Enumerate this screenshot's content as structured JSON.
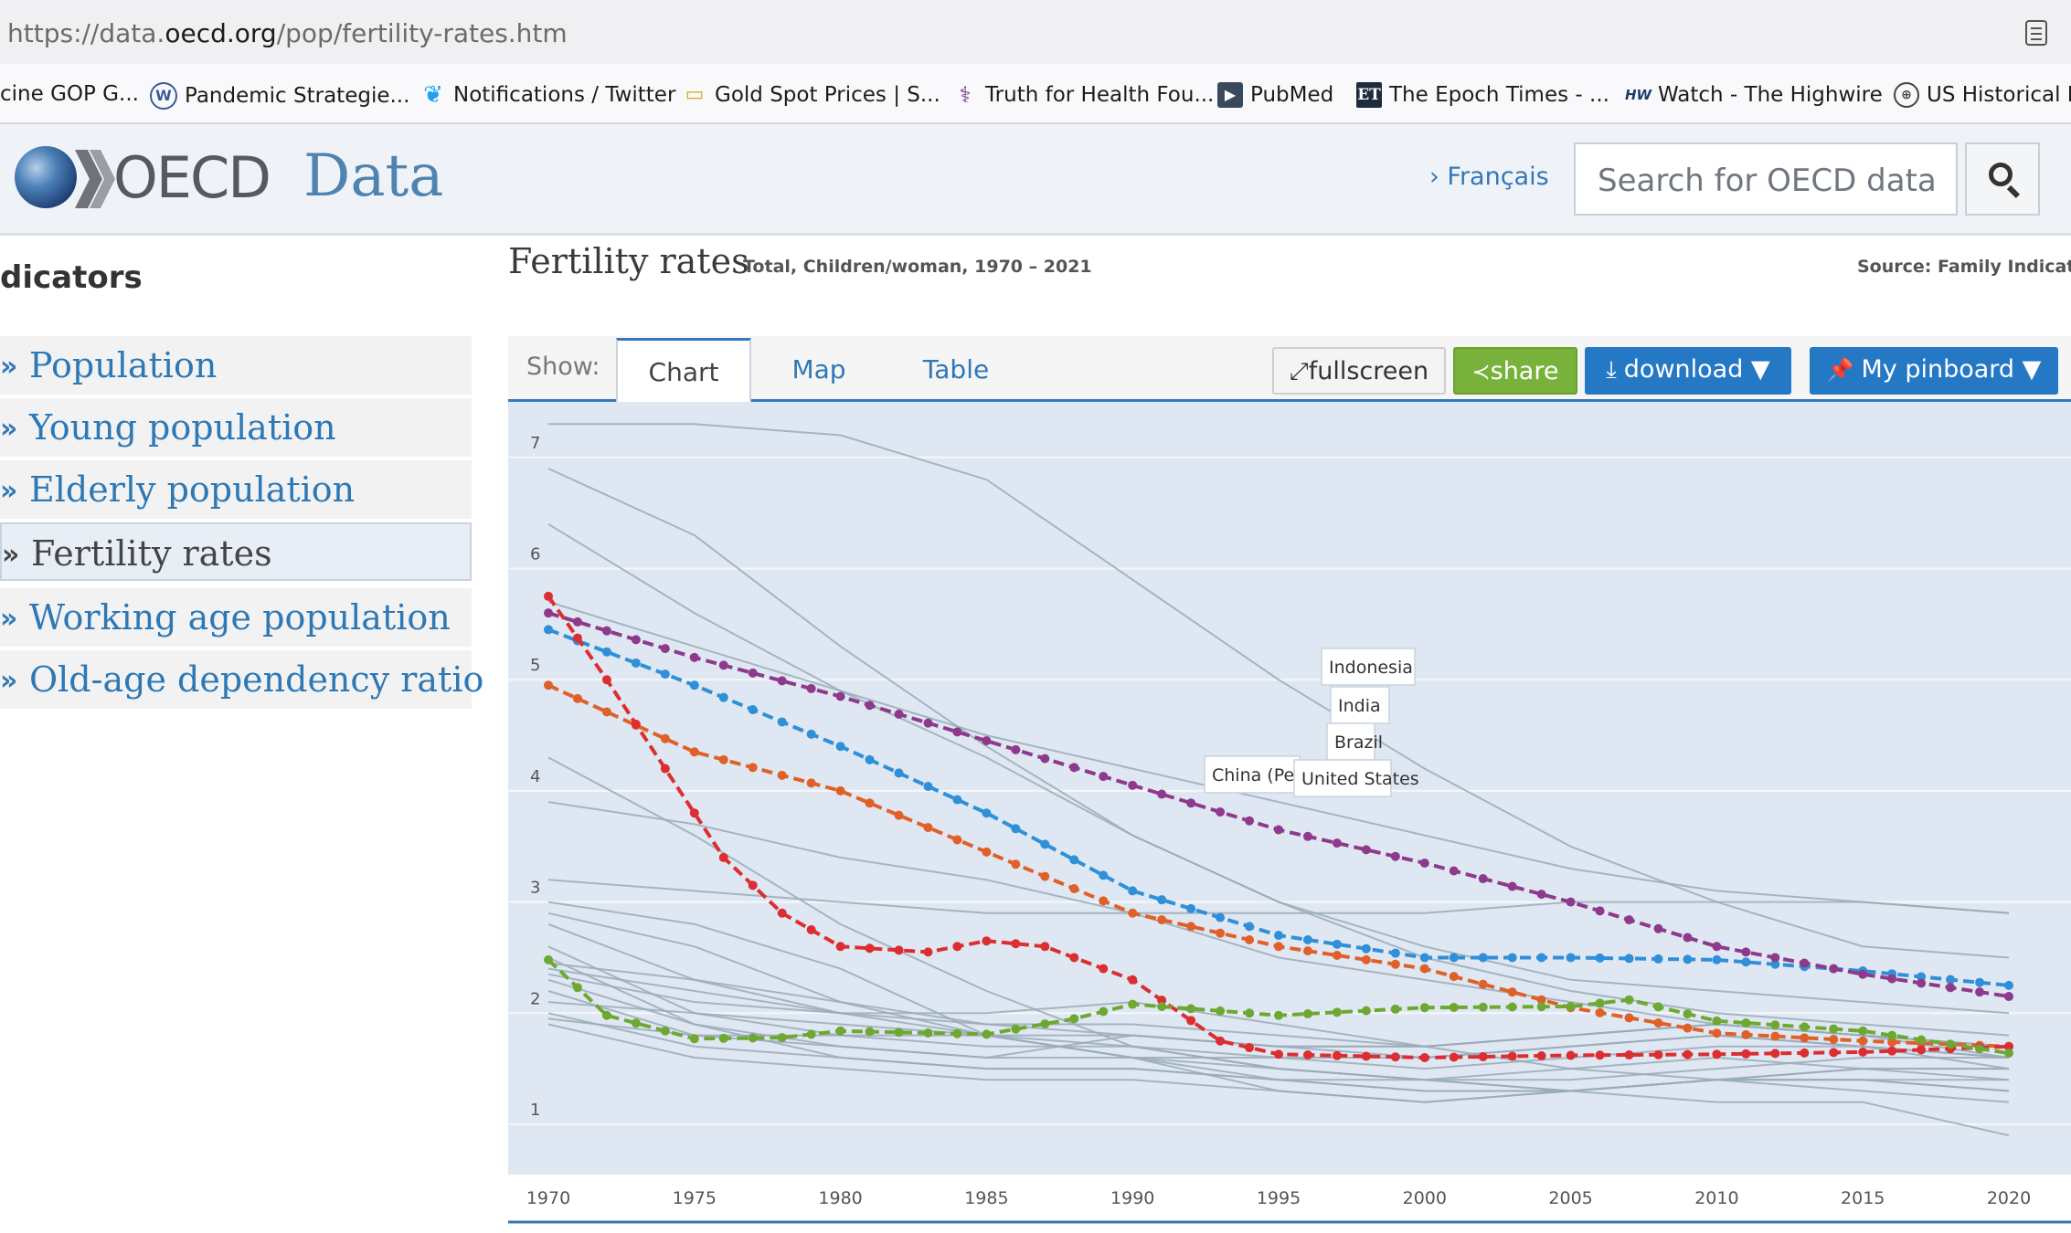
{
  "browser": {
    "url_prefix": "https://data.",
    "url_host": "oecd.org",
    "url_path": "/pop/fertility-rates.htm",
    "bookmarks": [
      {
        "label": "cine GOP G...",
        "icon": "none"
      },
      {
        "label": "Pandemic Strategie...",
        "icon": "wordpress-icon"
      },
      {
        "label": "Notifications / Twitter",
        "icon": "twitter-icon"
      },
      {
        "label": "Gold Spot Prices | S...",
        "icon": "gold-bars-icon"
      },
      {
        "label": "Truth for Health Fou...",
        "icon": "caduceus-icon"
      },
      {
        "label": "PubMed",
        "icon": "pubmed-icon"
      },
      {
        "label": "The Epoch Times - ...",
        "icon": "epoch-times-icon"
      },
      {
        "label": "Watch - The Highwire",
        "icon": "highwire-icon"
      },
      {
        "label": "US Historical D",
        "icon": "globe-icon"
      }
    ]
  },
  "header": {
    "logo_text": "OECD",
    "site_name": "Data",
    "lang_link": "› Français",
    "search_placeholder": "Search for OECD data"
  },
  "sidebar": {
    "title": "dicators",
    "items": [
      {
        "label": "Population",
        "active": false
      },
      {
        "label": "Young population",
        "active": false
      },
      {
        "label": "Elderly population",
        "active": false
      },
      {
        "label": "Fertility rates",
        "active": true
      },
      {
        "label": "Working age population",
        "active": false
      },
      {
        "label": "Old-age dependency ratio",
        "active": false
      }
    ]
  },
  "main": {
    "title": "Fertility rates",
    "subtitle": "Total, Children/woman, 1970 – 2021",
    "source": "Source: Family Indicators",
    "show_label": "Show:",
    "tabs": [
      "Chart",
      "Map",
      "Table"
    ],
    "active_tab": "Chart",
    "buttons": {
      "fullscreen": "fullscreen",
      "share": "share",
      "download": "download ▼",
      "pinboard": "My pinboard ▼"
    }
  },
  "colors": {
    "accent": "#2478c4",
    "share": "#79b23a",
    "chart_bg": "#dfe8f2",
    "grey_line": "#9aaab8"
  },
  "chart_data": {
    "type": "line",
    "xlim": [
      1970,
      2021
    ],
    "ylim": [
      0.6,
      7.5
    ],
    "x_ticks": [
      1970,
      1975,
      1980,
      1985,
      1990,
      1995,
      2000,
      2005,
      2010,
      2015,
      2020
    ],
    "y_ticks": [
      1,
      2,
      3,
      4,
      5,
      6,
      7
    ],
    "grid": true,
    "highlighted_series": [
      {
        "name": "Indonesia",
        "color": "#2f8fd8",
        "x": [
          1970,
          1975,
          1980,
          1985,
          1990,
          1995,
          2000,
          2005,
          2010,
          2015,
          2020
        ],
        "y": [
          5.45,
          4.95,
          4.4,
          3.8,
          3.1,
          2.7,
          2.5,
          2.5,
          2.48,
          2.38,
          2.25
        ]
      },
      {
        "name": "India",
        "color": "#8e3a8c",
        "x": [
          1970,
          1975,
          1980,
          1985,
          1990,
          1995,
          2000,
          2005,
          2010,
          2015,
          2020
        ],
        "y": [
          5.6,
          5.2,
          4.85,
          4.45,
          4.05,
          3.65,
          3.35,
          3.0,
          2.6,
          2.35,
          2.15
        ]
      },
      {
        "name": "Brazil",
        "color": "#e0602a",
        "x": [
          1970,
          1975,
          1980,
          1985,
          1990,
          1995,
          2000,
          2005,
          2010,
          2015,
          2020
        ],
        "y": [
          4.95,
          4.35,
          4.0,
          3.45,
          2.9,
          2.6,
          2.4,
          2.05,
          1.82,
          1.75,
          1.7
        ]
      },
      {
        "name": "China (People",
        "color": "#dc2e32",
        "x": [
          1970,
          1972,
          1974,
          1976,
          1978,
          1980,
          1983,
          1985,
          1987,
          1990,
          1993,
          1995,
          2000,
          2005,
          2010,
          2015,
          2020
        ],
        "y": [
          5.75,
          5.0,
          4.2,
          3.4,
          2.9,
          2.6,
          2.55,
          2.65,
          2.6,
          2.3,
          1.75,
          1.63,
          1.6,
          1.62,
          1.63,
          1.65,
          1.7
        ]
      },
      {
        "name": "United States",
        "color": "#6ea832",
        "x": [
          1970,
          1972,
          1975,
          1978,
          1980,
          1985,
          1988,
          1990,
          1995,
          2000,
          2005,
          2007,
          2010,
          2015,
          2020
        ],
        "y": [
          2.48,
          1.98,
          1.77,
          1.78,
          1.84,
          1.81,
          1.95,
          2.08,
          1.98,
          2.05,
          2.06,
          2.12,
          1.93,
          1.84,
          1.64
        ]
      }
    ],
    "other_series": [
      {
        "x": [
          1970,
          1975,
          1980,
          1985,
          1990,
          1995,
          2000,
          2005,
          2010,
          2015,
          2020
        ],
        "y": [
          7.3,
          7.3,
          7.2,
          6.8,
          5.9,
          5.0,
          4.2,
          3.5,
          3.0,
          2.6,
          2.5
        ]
      },
      {
        "x": [
          1970,
          1975,
          1980,
          1985,
          1990,
          1995,
          2000,
          2005,
          2010,
          2015,
          2020
        ],
        "y": [
          6.9,
          6.3,
          5.3,
          4.4,
          3.6,
          3.0,
          2.6,
          2.3,
          2.2,
          2.1,
          2.0
        ]
      },
      {
        "x": [
          1970,
          1975,
          1980,
          1985,
          1990,
          1995,
          2000,
          2005,
          2010,
          2015,
          2020
        ],
        "y": [
          6.4,
          5.6,
          4.9,
          4.3,
          3.6,
          3.0,
          2.5,
          2.2,
          2.0,
          1.9,
          1.8
        ]
      },
      {
        "x": [
          1970,
          1975,
          1980,
          1985,
          1990,
          1995,
          2000,
          2005,
          2010,
          2015,
          2020
        ],
        "y": [
          5.7,
          5.3,
          4.9,
          4.5,
          4.2,
          3.9,
          3.6,
          3.3,
          3.1,
          3.0,
          2.9
        ]
      },
      {
        "x": [
          1970,
          1975,
          1980,
          1985,
          1990,
          1995,
          2000,
          2005,
          2010,
          2015,
          2020
        ],
        "y": [
          4.3,
          3.6,
          2.8,
          2.2,
          1.7,
          1.5,
          1.4,
          1.3,
          1.2,
          1.2,
          0.9
        ]
      },
      {
        "x": [
          1970,
          1975,
          1980,
          1985,
          1990,
          1995,
          2000,
          2005,
          2010,
          2015,
          2020
        ],
        "y": [
          3.9,
          3.7,
          3.4,
          3.2,
          2.9,
          2.5,
          2.3,
          2.1,
          1.9,
          1.8,
          1.7
        ]
      },
      {
        "x": [
          1970,
          1975,
          1980,
          1985,
          1990,
          1995,
          2000,
          2005,
          2010,
          2015,
          2020
        ],
        "y": [
          3.2,
          3.1,
          3.0,
          2.9,
          2.9,
          2.9,
          2.9,
          3.0,
          3.0,
          3.0,
          2.9
        ]
      },
      {
        "x": [
          1970,
          1975,
          1980,
          1985,
          1990,
          1995,
          2000,
          2005,
          2010,
          2015,
          2020
        ],
        "y": [
          3.0,
          2.8,
          2.4,
          1.8,
          1.6,
          1.5,
          1.4,
          1.5,
          1.6,
          1.5,
          1.5
        ]
      },
      {
        "x": [
          1970,
          1975,
          1980,
          1985,
          1990,
          1995,
          2000,
          2005,
          2010,
          2015,
          2020
        ],
        "y": [
          2.9,
          2.6,
          2.1,
          1.8,
          1.6,
          1.4,
          1.3,
          1.3,
          1.4,
          1.4,
          1.4
        ]
      },
      {
        "x": [
          1970,
          1975,
          1980,
          1985,
          1990,
          1995,
          2000,
          2005,
          2010,
          2015,
          2020
        ],
        "y": [
          2.8,
          2.3,
          2.0,
          1.9,
          1.9,
          1.8,
          1.7,
          1.8,
          1.9,
          1.8,
          1.6
        ]
      },
      {
        "x": [
          1970,
          1975,
          1980,
          1985,
          1990,
          1995,
          2000,
          2005,
          2010,
          2015,
          2020
        ],
        "y": [
          2.6,
          2.0,
          1.8,
          1.7,
          1.7,
          1.6,
          1.6,
          1.7,
          1.8,
          1.7,
          1.6
        ]
      },
      {
        "x": [
          1970,
          1975,
          1980,
          1985,
          1990,
          1995,
          2000,
          2005,
          2010,
          2015,
          2020
        ],
        "y": [
          2.5,
          1.9,
          1.6,
          1.5,
          1.5,
          1.4,
          1.4,
          1.3,
          1.4,
          1.5,
          1.5
        ]
      },
      {
        "x": [
          1970,
          1975,
          1980,
          1985,
          1990,
          1995,
          2000,
          2005,
          2010,
          2015,
          2020
        ],
        "y": [
          2.4,
          2.2,
          2.0,
          1.8,
          1.6,
          1.3,
          1.2,
          1.3,
          1.4,
          1.4,
          1.3
        ]
      },
      {
        "x": [
          1970,
          1975,
          1980,
          1985,
          1990,
          1995,
          2000,
          2005,
          2010,
          2015,
          2020
        ],
        "y": [
          2.3,
          1.9,
          1.7,
          1.6,
          1.8,
          1.7,
          1.6,
          1.7,
          1.8,
          1.7,
          1.5
        ]
      },
      {
        "x": [
          1970,
          1975,
          1980,
          1985,
          1990,
          1995,
          2000,
          2005,
          2010,
          2015,
          2020
        ],
        "y": [
          2.2,
          1.8,
          1.8,
          1.8,
          1.7,
          1.5,
          1.4,
          1.4,
          1.5,
          1.6,
          1.6
        ]
      },
      {
        "x": [
          1970,
          1975,
          1980,
          1985,
          1990,
          1995,
          2000,
          2005,
          2010,
          2015,
          2020
        ],
        "y": [
          2.1,
          2.0,
          1.9,
          1.8,
          1.8,
          1.7,
          1.7,
          1.8,
          1.9,
          1.8,
          1.7
        ]
      },
      {
        "x": [
          1970,
          1975,
          1980,
          1985,
          1990,
          1995,
          2000,
          2005,
          2010,
          2015,
          2020
        ],
        "y": [
          2.0,
          1.7,
          1.6,
          1.5,
          1.5,
          1.4,
          1.3,
          1.3,
          1.4,
          1.5,
          1.4
        ]
      },
      {
        "x": [
          1970,
          1975,
          1980,
          1985,
          1990,
          1995,
          2000,
          2005,
          2010,
          2015,
          2020
        ],
        "y": [
          1.95,
          1.8,
          1.7,
          1.6,
          1.6,
          1.6,
          1.5,
          1.6,
          1.7,
          1.7,
          1.6
        ]
      },
      {
        "x": [
          1970,
          1975,
          1980,
          1985,
          1990,
          1995,
          2000,
          2005,
          2010,
          2015,
          2020
        ],
        "y": [
          1.9,
          1.6,
          1.5,
          1.4,
          1.4,
          1.3,
          1.2,
          1.3,
          1.4,
          1.4,
          1.3
        ]
      },
      {
        "x": [
          1970,
          1975,
          1980,
          1985,
          1990,
          1995,
          2000,
          2005,
          2010,
          2015,
          2020
        ],
        "y": [
          2.35,
          2.1,
          2.0,
          2.0,
          2.1,
          1.9,
          1.7,
          1.5,
          1.4,
          1.3,
          1.2
        ]
      },
      {
        "x": [
          1970,
          1975,
          1980,
          1985,
          1990,
          1995,
          2000,
          2005,
          2010,
          2015,
          2020
        ],
        "y": [
          2.45,
          2.3,
          2.1,
          1.9,
          1.8,
          1.7,
          1.7,
          1.8,
          1.9,
          1.8,
          1.7
        ]
      }
    ]
  }
}
